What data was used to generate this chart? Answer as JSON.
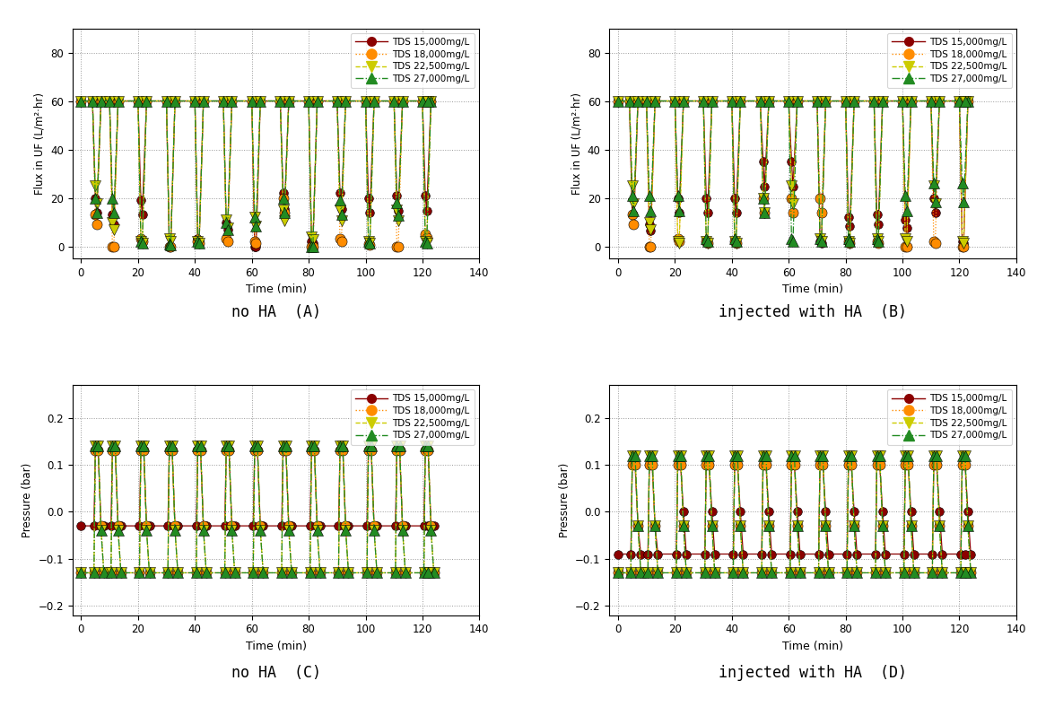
{
  "series_labels": [
    "TDS 15,000mg/L",
    "TDS 18,000mg/L",
    "TDS 22,500mg/L",
    "TDS 27,000mg/L"
  ],
  "series_colors": [
    "#8B0000",
    "#FF8C00",
    "#CCCC00",
    "#228B22"
  ],
  "series_linestyles": [
    "-",
    ":",
    "--",
    "-."
  ],
  "series_markers": [
    "o",
    "o",
    "v",
    "^"
  ],
  "series_marker_sizes": [
    7,
    8,
    9,
    9
  ],
  "flux_ylim": [
    -5,
    90
  ],
  "flux_yticks": [
    0,
    20,
    40,
    60,
    80
  ],
  "flux_ylabel": "Flux in UF (L/m²·hr)",
  "pressure_ylim": [
    -0.22,
    0.27
  ],
  "pressure_yticks": [
    -0.2,
    -0.1,
    0.0,
    0.1,
    0.2
  ],
  "pressure_ylabel": "Pressure (bar)",
  "xlabel": "Time (min)",
  "xlim": [
    -3,
    140
  ],
  "xticks": [
    0,
    20,
    40,
    60,
    80,
    100,
    120,
    140
  ],
  "panel_titles": [
    "no HA  (A)",
    "injected with HA  (B)",
    "no HA  (C)",
    "injected with HA  (D)"
  ]
}
